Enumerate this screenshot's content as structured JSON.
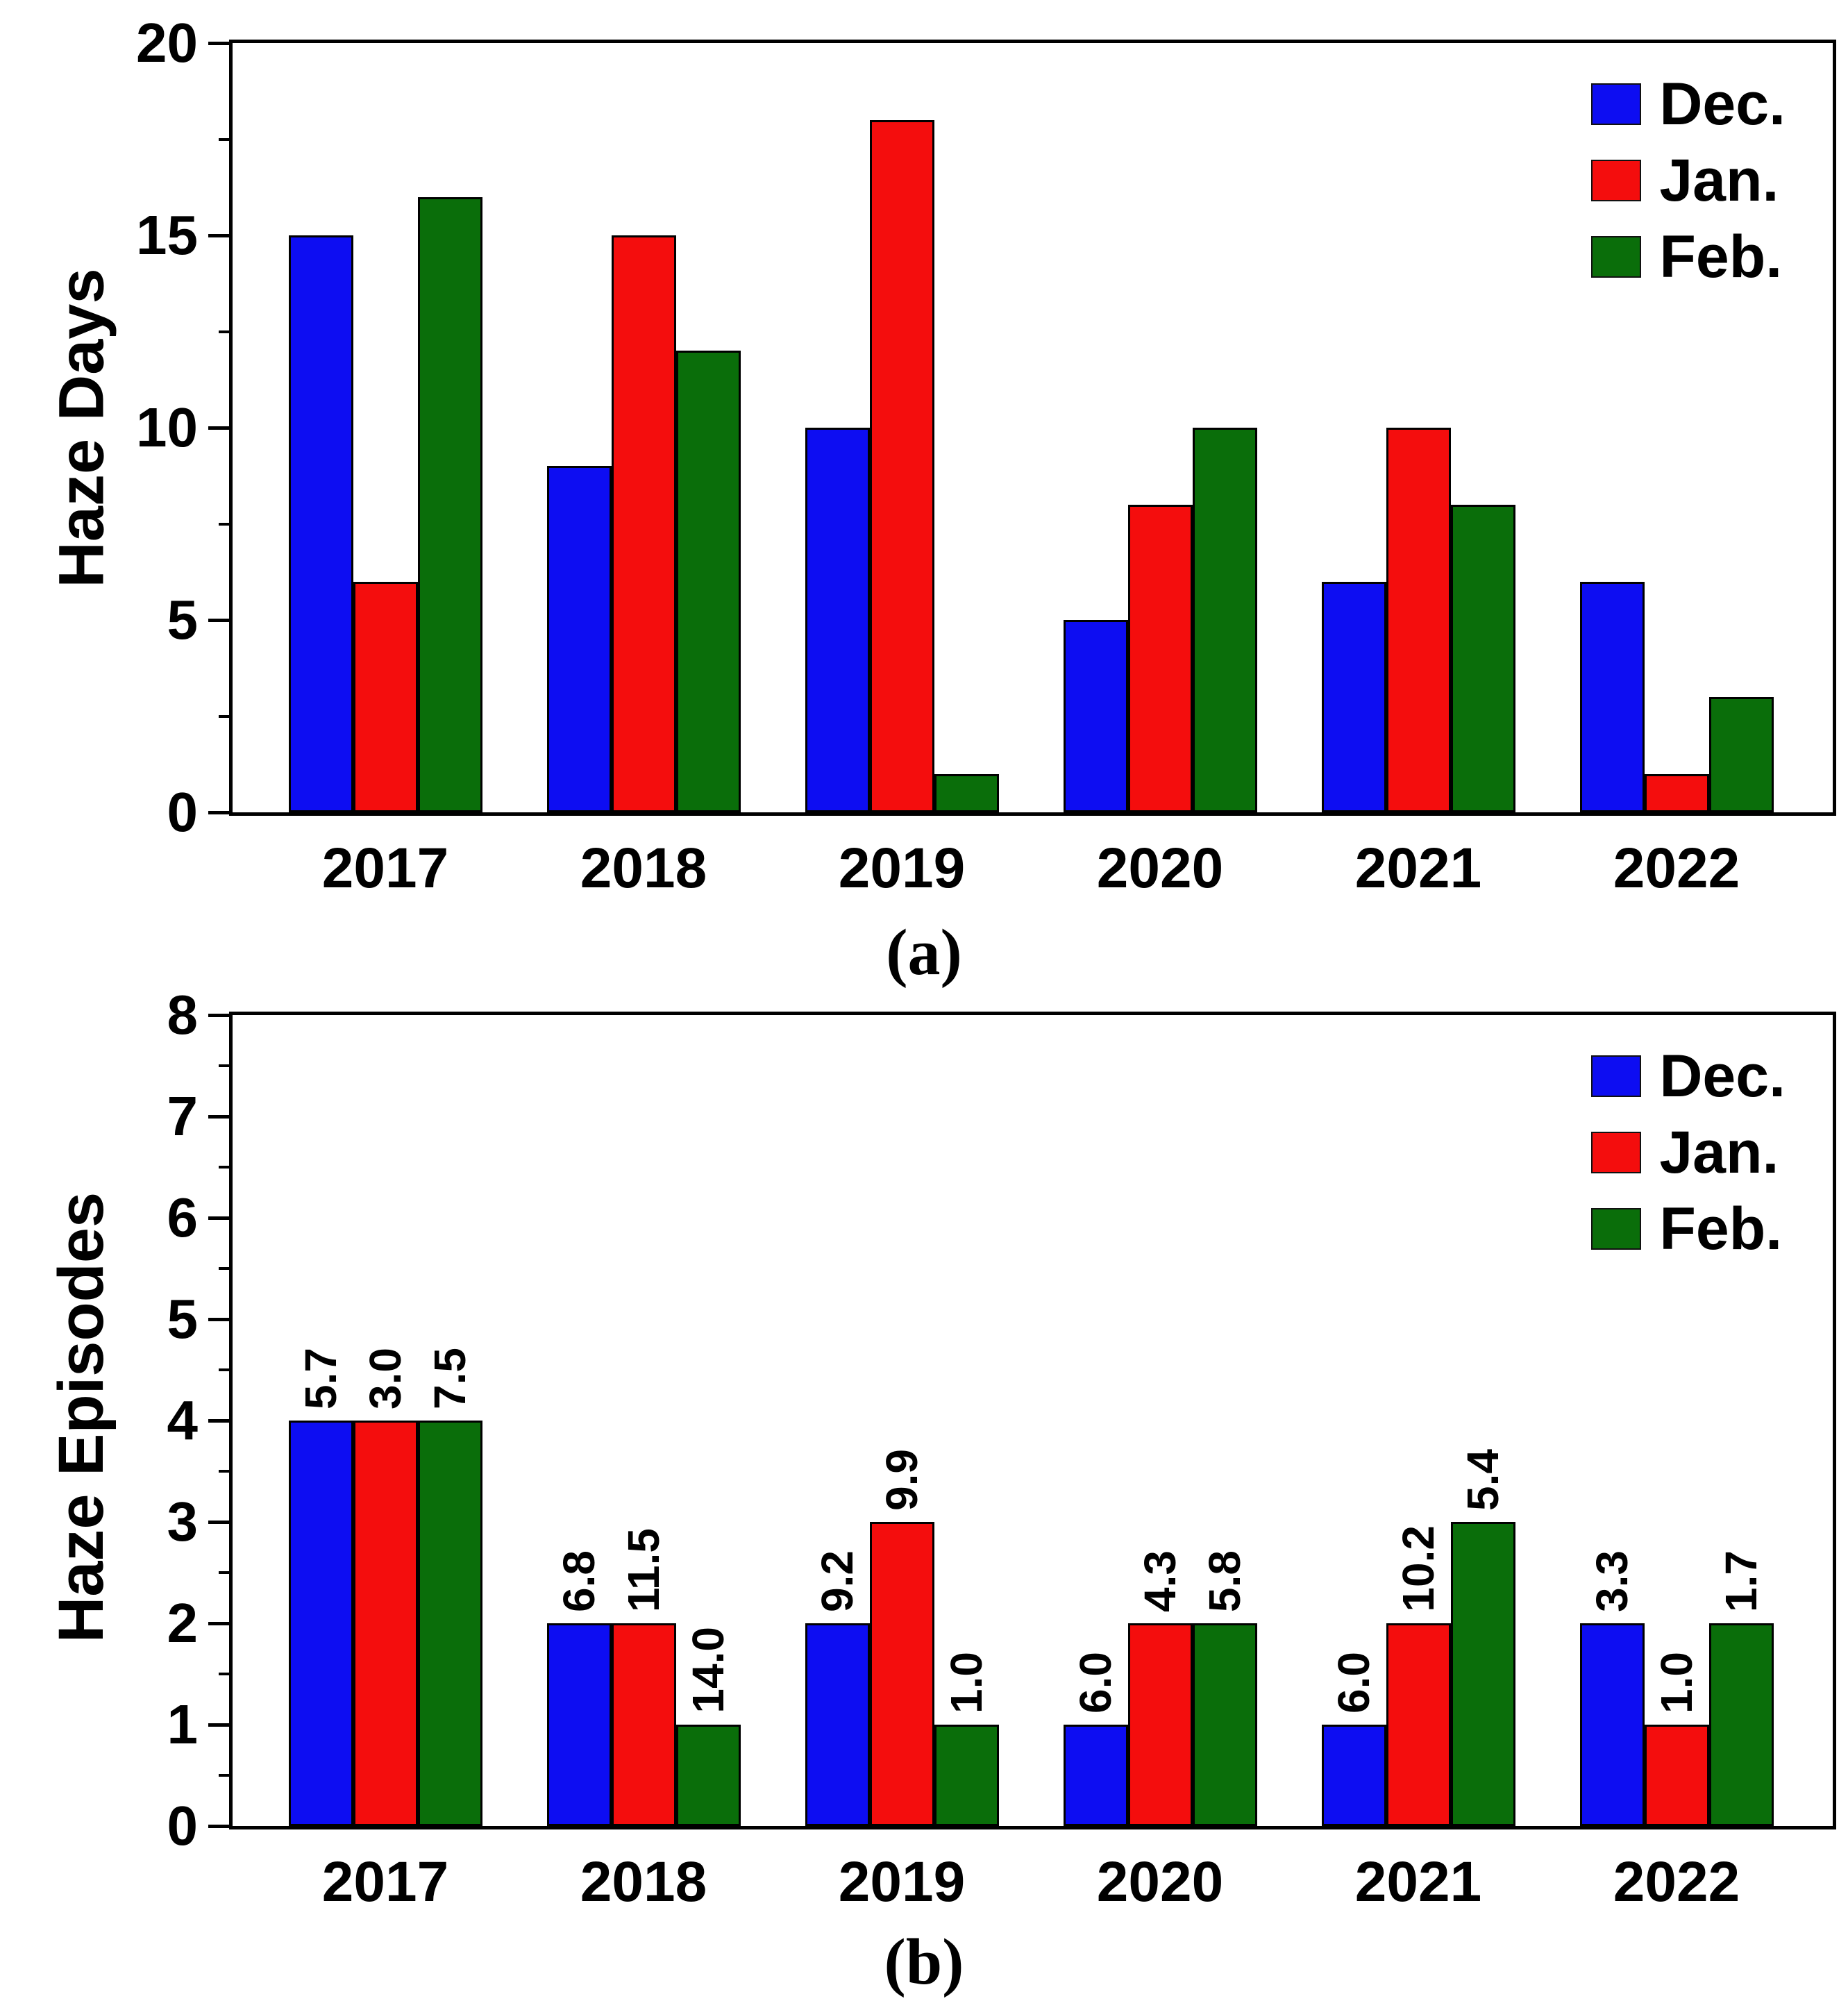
{
  "figure": {
    "background": "#ffffff",
    "frame_color": "#000000",
    "text_color": "#000000"
  },
  "chart_data": [
    {
      "type": "bar",
      "panel": "a",
      "caption": "(a)",
      "title": "",
      "xlabel": "",
      "ylabel": "Haze Days",
      "categories": [
        "2017",
        "2018",
        "2019",
        "2020",
        "2021",
        "2022"
      ],
      "series": [
        {
          "name": "Dec.",
          "color": "#0d0df2",
          "values": [
            15,
            9,
            10,
            5,
            6,
            6
          ]
        },
        {
          "name": "Jan.",
          "color": "#f40d0d",
          "values": [
            6,
            15,
            18,
            8,
            10,
            1
          ]
        },
        {
          "name": "Feb.",
          "color": "#0a6e0a",
          "values": [
            16,
            12,
            1,
            10,
            8,
            3
          ]
        }
      ],
      "ylim": [
        0,
        20
      ],
      "ytick_step": 5,
      "minor_tick_step": 2.5,
      "yticks": [
        "0",
        "5",
        "10",
        "15",
        "20"
      ],
      "grid": false,
      "legend_position": "top-right"
    },
    {
      "type": "bar",
      "panel": "b",
      "caption": "(b)",
      "title": "",
      "xlabel": "",
      "ylabel": "Haze Episodes",
      "categories": [
        "2017",
        "2018",
        "2019",
        "2020",
        "2021",
        "2022"
      ],
      "series": [
        {
          "name": "Dec.",
          "color": "#0d0df2",
          "values": [
            4,
            2,
            2,
            1,
            1,
            2
          ],
          "bar_labels": [
            "5.7",
            "6.8",
            "9.2",
            "6.0",
            "6.0",
            "3.3"
          ]
        },
        {
          "name": "Jan.",
          "color": "#f40d0d",
          "values": [
            4,
            2,
            3,
            2,
            2,
            1
          ],
          "bar_labels": [
            "3.0",
            "11.5",
            "9.9",
            "4.3",
            "10.2",
            "1.0"
          ]
        },
        {
          "name": "Feb.",
          "color": "#0a6e0a",
          "values": [
            4,
            1,
            1,
            2,
            3,
            2
          ],
          "bar_labels": [
            "7.5",
            "14.0",
            "1.0",
            "5.8",
            "5.4",
            "1.7"
          ]
        }
      ],
      "ylim": [
        0,
        8
      ],
      "ytick_step": 1,
      "minor_tick_step": 0.5,
      "yticks": [
        "0",
        "1",
        "2",
        "3",
        "4",
        "5",
        "6",
        "7",
        "8"
      ],
      "grid": false,
      "legend_position": "top-right"
    }
  ]
}
